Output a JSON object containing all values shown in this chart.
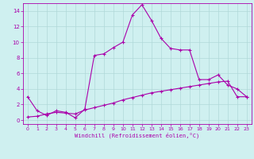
{
  "xlabel": "Windchill (Refroidissement éolien,°C)",
  "xlim": [
    -0.5,
    23.5
  ],
  "ylim": [
    -0.5,
    15
  ],
  "xticks": [
    0,
    1,
    2,
    3,
    4,
    5,
    6,
    7,
    8,
    9,
    10,
    11,
    12,
    13,
    14,
    15,
    16,
    17,
    18,
    19,
    20,
    21,
    22,
    23
  ],
  "yticks": [
    0,
    2,
    4,
    6,
    8,
    10,
    12,
    14
  ],
  "background_color": "#cff0f0",
  "grid_color": "#b0d8d8",
  "line_color": "#aa00aa",
  "series1_x": [
    0,
    1,
    2,
    3,
    4,
    5,
    6,
    7,
    8,
    9,
    10,
    11,
    12,
    13,
    14,
    15,
    16,
    17,
    18,
    19,
    20,
    21,
    22,
    23
  ],
  "series1_y": [
    3.0,
    1.2,
    0.6,
    1.2,
    1.0,
    0.3,
    1.4,
    8.3,
    8.5,
    9.3,
    10.0,
    13.5,
    14.8,
    12.8,
    10.5,
    9.2,
    9.0,
    9.0,
    5.2,
    5.2,
    5.8,
    4.5,
    4.0,
    3.0
  ],
  "series2_x": [
    0,
    1,
    2,
    3,
    4,
    5,
    6,
    7,
    8,
    9,
    10,
    11,
    12,
    13,
    14,
    15,
    16,
    17,
    18,
    19,
    20,
    21,
    22,
    23
  ],
  "series2_y": [
    0.4,
    0.5,
    0.8,
    1.0,
    0.9,
    0.8,
    1.3,
    1.6,
    1.9,
    2.2,
    2.6,
    2.9,
    3.2,
    3.5,
    3.7,
    3.9,
    4.1,
    4.3,
    4.5,
    4.7,
    4.9,
    5.0,
    3.0,
    3.0
  ]
}
